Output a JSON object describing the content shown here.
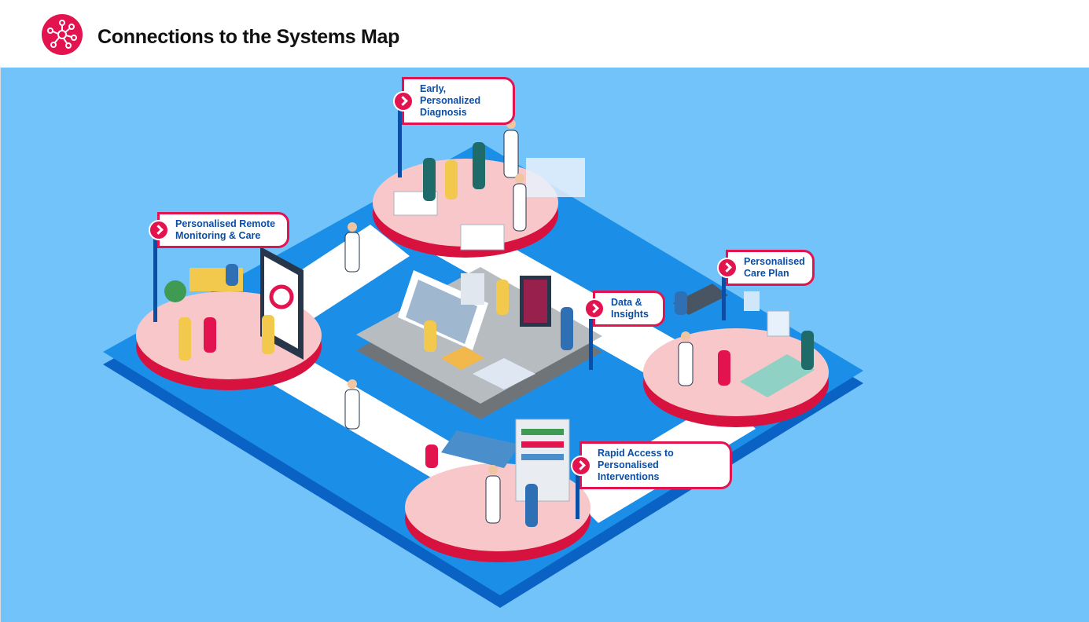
{
  "header": {
    "title": "Connections to the Systems Map",
    "logo_icon": "network-nodes-icon"
  },
  "colors": {
    "accent": "#e3134f",
    "label_text": "#0a4ea6",
    "background": "#72c3f9",
    "platform": "#1b8fe8",
    "pad": "#f7c7c9"
  },
  "labels": {
    "diagnosis": [
      "Early, Personalized",
      "Diagnosis"
    ],
    "remote": [
      "Personalised Remote",
      "Monitoring & Care"
    ],
    "care_plan": [
      "Personalised",
      "Care Plan"
    ],
    "data": [
      "Data &",
      "Insights"
    ],
    "interventions": [
      "Rapid Access to",
      "Personalised Interventions"
    ]
  }
}
